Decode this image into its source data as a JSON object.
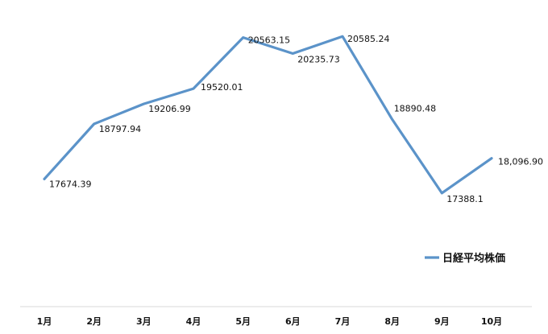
{
  "chart_data": {
    "type": "line",
    "categories": [
      "1月",
      "2月",
      "3月",
      "4月",
      "5月",
      "6月",
      "7月",
      "8月",
      "9月",
      "10月"
    ],
    "series": [
      {
        "name": "日経平均株価",
        "values": [
          17674.39,
          18797.94,
          19206.99,
          19520.01,
          20563.15,
          20235.73,
          20585.24,
          18890.48,
          17388.1,
          18096.9
        ],
        "labels": [
          "17674.39",
          "18797.94",
          "19206.99",
          "19520.01",
          "20563.15",
          "20235.73",
          "20585.24",
          "18890.48",
          "17388.1",
          "18,096.90"
        ],
        "color": "#5b93c9"
      }
    ],
    "title": "",
    "xlabel": "",
    "ylabel": "",
    "ylim": [
      16400,
      21000
    ],
    "grid": false,
    "legend": "right"
  }
}
